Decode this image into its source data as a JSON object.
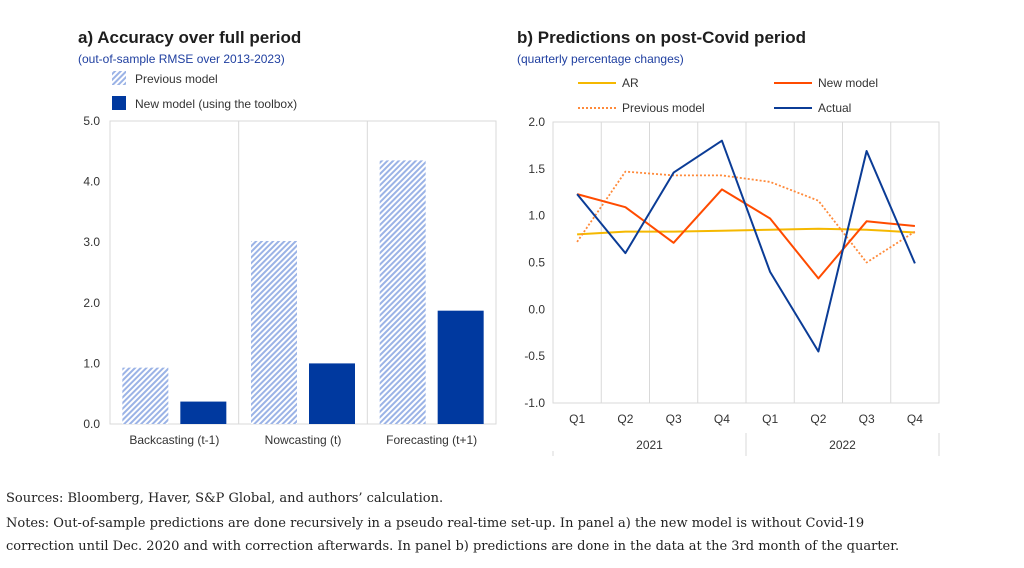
{
  "panel_a": {
    "title": "a) Accuracy over full period",
    "subtitle": "(out-of-sample RMSE over 2013-2023)"
  },
  "panel_b": {
    "title": "b) Predictions on post-Covid period",
    "subtitle": "(quarterly percentage changes)"
  },
  "footer": {
    "sources": "Sources: Bloomberg, Haver, S&P Global, and authors’ calculation.",
    "notes_line1": "Notes: Out-of-sample predictions are done recursively in a pseudo real-time set-up. In panel a) the new model is without Covid-19",
    "notes_line2": "correction until Dec. 2020 and with correction afterwards. In panel b) predictions are done in the data at the 3rd month of the quarter."
  },
  "colors": {
    "previous_model_hatch": "#9bb3e6",
    "new_model_bar": "#00399f",
    "ar": "#f5b800",
    "new_model_line": "#ff4b00",
    "previous_model_line": "#ff8a3a",
    "actual": "#0b3c96",
    "grid": "#d9d9d9"
  },
  "chart_data": [
    {
      "type": "bar",
      "categories": [
        "Backcasting (t-1)",
        "Nowcasting (t)",
        "Forecasting (t+1)"
      ],
      "series": [
        {
          "name": "Previous model",
          "values": [
            0.93,
            3.02,
            4.35
          ],
          "pattern": "hatched"
        },
        {
          "name": "New model (using the toolbox)",
          "values": [
            0.37,
            1.0,
            1.87
          ],
          "pattern": "solid"
        }
      ],
      "ylim": [
        0,
        5
      ],
      "yticks": [
        "0.0",
        "1.0",
        "2.0",
        "3.0",
        "4.0",
        "5.0"
      ],
      "grid": "vertical separators between categories",
      "legend": "top-left"
    },
    {
      "type": "line",
      "x": [
        "Q1",
        "Q2",
        "Q3",
        "Q4",
        "Q1",
        "Q2",
        "Q3",
        "Q4"
      ],
      "x_groups": [
        {
          "label": "2021",
          "span": [
            0,
            3
          ]
        },
        {
          "label": "2022",
          "span": [
            4,
            7
          ]
        }
      ],
      "series": [
        {
          "name": "AR",
          "values": [
            0.8,
            0.83,
            0.83,
            0.84,
            0.85,
            0.86,
            0.85,
            0.82
          ],
          "style": "solid"
        },
        {
          "name": "New model",
          "values": [
            1.23,
            1.09,
            0.71,
            1.28,
            0.97,
            0.33,
            0.94,
            0.89
          ],
          "style": "solid"
        },
        {
          "name": "Previous model",
          "values": [
            0.72,
            1.47,
            1.43,
            1.43,
            1.36,
            1.16,
            0.5,
            0.83
          ],
          "style": "dotted"
        },
        {
          "name": "Actual",
          "values": [
            1.23,
            0.6,
            1.46,
            1.8,
            0.4,
            -0.45,
            1.69,
            0.49
          ],
          "style": "solid"
        }
      ],
      "ylim": [
        -1.0,
        2.0
      ],
      "yticks": [
        "-1.0",
        "-0.5",
        "0.0",
        "0.5",
        "1.0",
        "1.5",
        "2.0"
      ],
      "grid": "vertical gridlines",
      "legend": "top, two columns"
    }
  ]
}
